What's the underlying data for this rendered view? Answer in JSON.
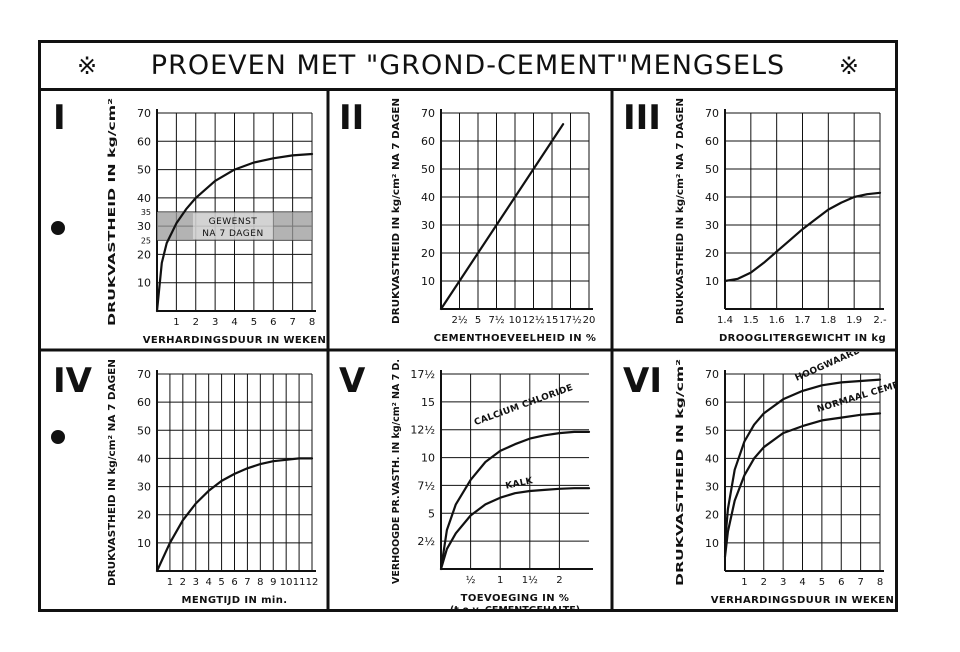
{
  "title": "PROEVEN MET \"GROND-CEMENT\"MENGSELS",
  "title_marker": "※",
  "chart_data": [
    {
      "numeral": "I",
      "type": "line",
      "ylabel": "DRUKVASTHEID IN kg/cm²",
      "xlabel": "VERHARDINGSDUUR IN WEKEN",
      "x_ticks": [
        "1",
        "2",
        "3",
        "4",
        "5",
        "6",
        "7",
        "8"
      ],
      "x_tick_values": [
        1,
        2,
        3,
        4,
        5,
        6,
        7,
        8
      ],
      "y_ticks": [
        "10",
        "20",
        "25",
        "30",
        "35",
        "40",
        "50",
        "60",
        "70"
      ],
      "y_tick_values": [
        10,
        20,
        25,
        30,
        35,
        40,
        50,
        60,
        70
      ],
      "xlim": [
        0,
        8
      ],
      "ylim": [
        0,
        70
      ],
      "band": {
        "from": 25,
        "to": 35,
        "label_lines": [
          "GEWENST",
          "NA 7 DAGEN"
        ]
      },
      "series": [
        {
          "x": [
            0,
            0.25,
            0.5,
            1,
            1.5,
            2,
            3,
            4,
            5,
            6,
            7,
            8
          ],
          "y": [
            0,
            17,
            24,
            31,
            36,
            40,
            46,
            50,
            52.5,
            54,
            55,
            55.5
          ]
        }
      ]
    },
    {
      "numeral": "II",
      "type": "line",
      "ylabel": "DRUKVASTHEID IN kg/cm² NA 7 DAGEN",
      "xlabel": "CEMENTHOEVEELHEID IN %",
      "x_ticks": [
        "2½",
        "5",
        "7½",
        "10",
        "12½",
        "15",
        "17½",
        "20"
      ],
      "x_tick_values": [
        2.5,
        5,
        7.5,
        10,
        12.5,
        15,
        17.5,
        20
      ],
      "y_ticks": [
        "10",
        "20",
        "30",
        "40",
        "50",
        "60",
        "70"
      ],
      "y_tick_values": [
        10,
        20,
        30,
        40,
        50,
        60,
        70
      ],
      "xlim": [
        0,
        20
      ],
      "ylim": [
        0,
        70
      ],
      "series": [
        {
          "x": [
            0,
            16.5
          ],
          "y": [
            0,
            66
          ]
        }
      ]
    },
    {
      "numeral": "III",
      "type": "line",
      "ylabel": "DRUKVASTHEID IN kg/cm² NA 7 DAGEN",
      "xlabel": "DROOGLITERGEWICHT IN kg",
      "x_ticks": [
        "1.4",
        "1.5",
        "1.6",
        "1.7",
        "1.8",
        "1.9",
        "2.-"
      ],
      "x_tick_values": [
        1.4,
        1.5,
        1.6,
        1.7,
        1.8,
        1.9,
        2.0
      ],
      "y_ticks": [
        "10",
        "20",
        "30",
        "40",
        "50",
        "60",
        "70"
      ],
      "y_tick_values": [
        10,
        20,
        30,
        40,
        50,
        60,
        70
      ],
      "xlim": [
        1.4,
        2.0
      ],
      "ylim": [
        0,
        70
      ],
      "series": [
        {
          "x": [
            1.4,
            1.45,
            1.5,
            1.55,
            1.6,
            1.65,
            1.7,
            1.75,
            1.8,
            1.85,
            1.9,
            1.95,
            2.0
          ],
          "y": [
            10,
            10.8,
            13,
            16.5,
            20.5,
            24.5,
            28.5,
            32,
            35.5,
            38,
            40,
            41,
            41.5
          ]
        }
      ]
    },
    {
      "numeral": "IV",
      "type": "line",
      "ylabel": "DRUKVASTHEID IN kg/cm² NA 7 DAGEN",
      "xlabel": "MENGTIJD IN min.",
      "x_ticks": [
        "1",
        "2",
        "3",
        "4",
        "5",
        "6",
        "7",
        "8",
        "9",
        "10",
        "11",
        "12"
      ],
      "x_tick_values": [
        1,
        2,
        3,
        4,
        5,
        6,
        7,
        8,
        9,
        10,
        11,
        12
      ],
      "y_ticks": [
        "10",
        "20",
        "30",
        "40",
        "50",
        "60",
        "70"
      ],
      "y_tick_values": [
        10,
        20,
        30,
        40,
        50,
        60,
        70
      ],
      "xlim": [
        0,
        12
      ],
      "ylim": [
        0,
        70
      ],
      "series": [
        {
          "x": [
            0,
            1,
            2,
            3,
            4,
            5,
            6,
            7,
            8,
            9,
            10,
            11,
            12
          ],
          "y": [
            0,
            10,
            18,
            24,
            28.5,
            32,
            34.5,
            36.5,
            38,
            39,
            39.5,
            40,
            40
          ]
        }
      ]
    },
    {
      "numeral": "V",
      "type": "line",
      "ylabel": "VERHOOGDE PR.VASTH. IN kg/cm² NA 7 D.",
      "xlabel": "TOEVOEGING IN %",
      "xlabel2": "(t.o.v. CEMENTGEHALTE)",
      "x_ticks": [
        "½",
        "1",
        "1½",
        "2"
      ],
      "x_tick_values": [
        0.5,
        1,
        1.5,
        2
      ],
      "y_ticks": [
        "2½",
        "5",
        "7½",
        "10",
        "12½",
        "15",
        "17½"
      ],
      "y_tick_values": [
        2.5,
        5,
        7.5,
        10,
        12.5,
        15,
        17.5
      ],
      "xlim": [
        0,
        2.5
      ],
      "ylim": [
        0,
        17.5
      ],
      "series": [
        {
          "name": "CALCIUM CHLORIDE",
          "x": [
            0,
            0.1,
            0.25,
            0.5,
            0.75,
            1,
            1.25,
            1.5,
            1.75,
            2,
            2.25,
            2.5
          ],
          "y": [
            0,
            3.5,
            5.8,
            8,
            9.6,
            10.6,
            11.2,
            11.7,
            12,
            12.2,
            12.3,
            12.3
          ]
        },
        {
          "name": "KALK",
          "x": [
            0,
            0.1,
            0.25,
            0.5,
            0.75,
            1,
            1.25,
            1.5,
            1.75,
            2,
            2.25,
            2.5
          ],
          "y": [
            0,
            1.8,
            3.2,
            4.8,
            5.8,
            6.4,
            6.8,
            7,
            7.1,
            7.2,
            7.25,
            7.25
          ]
        }
      ]
    },
    {
      "numeral": "VI",
      "type": "line",
      "ylabel": "DRUKVASTHEID IN kg/cm²",
      "xlabel": "VERHARDINGSDUUR IN WEKEN",
      "x_ticks": [
        "1",
        "2",
        "3",
        "4",
        "5",
        "6",
        "7",
        "8"
      ],
      "x_tick_values": [
        1,
        2,
        3,
        4,
        5,
        6,
        7,
        8
      ],
      "y_ticks": [
        "10",
        "20",
        "30",
        "40",
        "50",
        "60",
        "70"
      ],
      "y_tick_values": [
        10,
        20,
        30,
        40,
        50,
        60,
        70
      ],
      "xlim": [
        0,
        8
      ],
      "ylim": [
        0,
        70
      ],
      "series": [
        {
          "name": "HOOGWAARDIG CEMENT",
          "x": [
            0,
            0.15,
            0.5,
            1,
            1.5,
            2,
            3,
            4,
            5,
            6,
            7,
            8
          ],
          "y": [
            10,
            22,
            36,
            46,
            52,
            56,
            61,
            64,
            66,
            67,
            67.5,
            68
          ]
        },
        {
          "name": "NORMAAL CEMENT",
          "x": [
            0,
            0.15,
            0.5,
            1,
            1.5,
            2,
            3,
            4,
            5,
            6,
            7,
            8
          ],
          "y": [
            5,
            14,
            25,
            34,
            40,
            44,
            49,
            51.5,
            53.5,
            54.5,
            55.5,
            56
          ]
        }
      ]
    }
  ]
}
